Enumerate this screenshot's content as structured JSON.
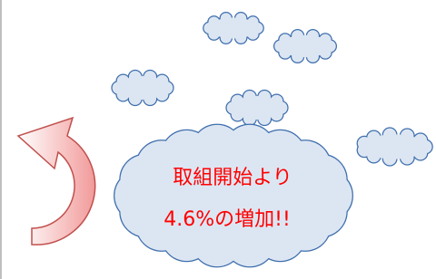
{
  "callout": {
    "line1": "取組開始より",
    "line2": "4.6%の増加!!"
  }
}
